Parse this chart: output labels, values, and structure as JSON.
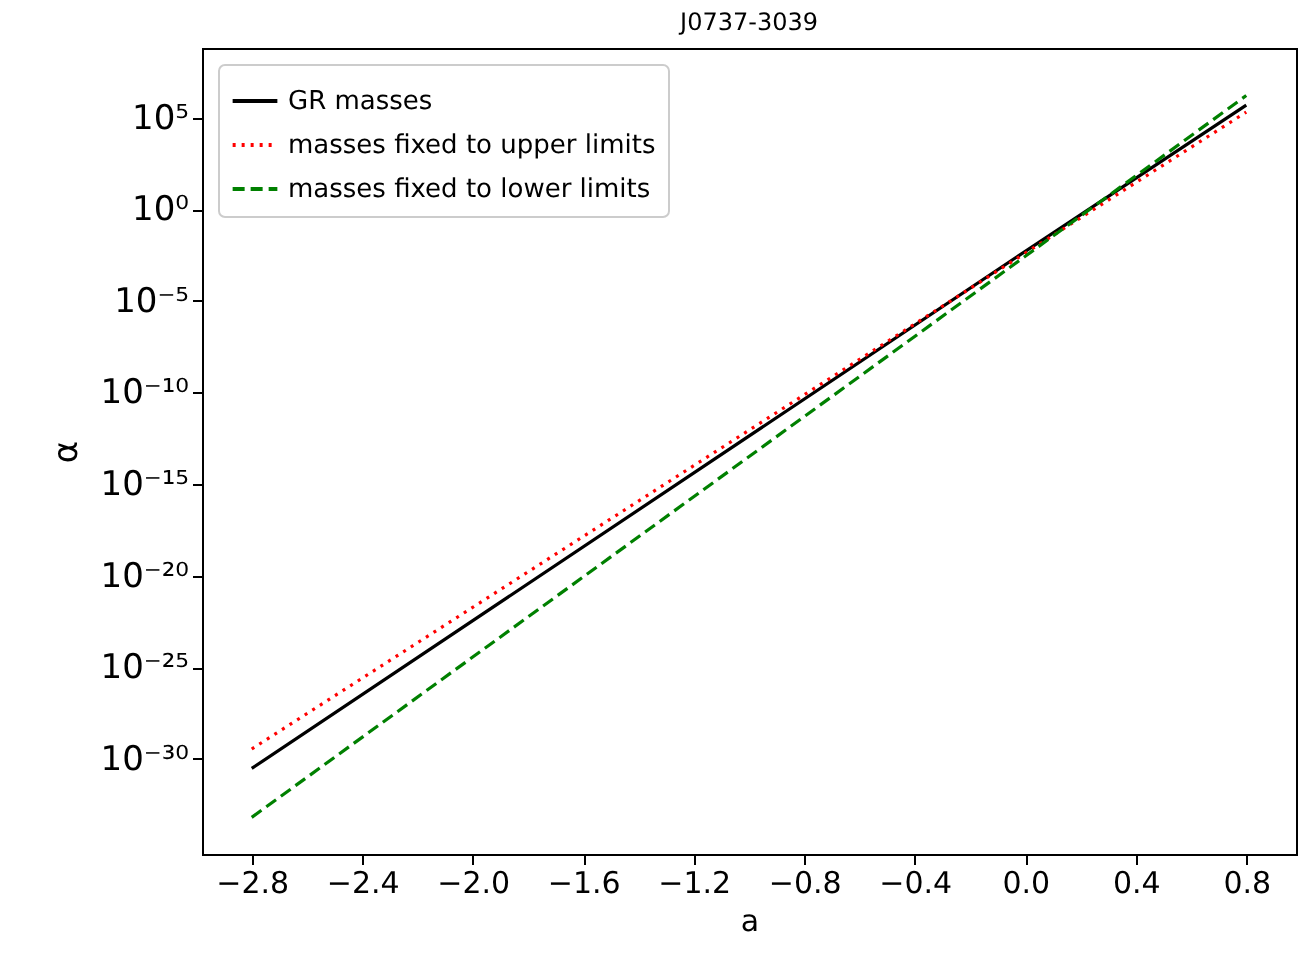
{
  "chart_data": {
    "type": "line",
    "title": "J0737-3039",
    "xlabel": "a",
    "ylabel": "α",
    "log": "y",
    "grid": false,
    "legend": "top left",
    "xlim": [
      -2.98,
      0.98
    ],
    "xticks": [
      -2.8,
      -2.4,
      {
        "value": -2.0,
        "label": "−2.0"
      },
      -1.6,
      -1.2,
      -0.8,
      -0.4,
      {
        "value": 0.0,
        "label": "0.0"
      },
      0.4,
      0.8
    ],
    "ylim": [
      6.3e-36,
      630000000.0
    ],
    "yticks": [
      {
        "value": 1e-30,
        "label": "10⁻³⁰"
      },
      {
        "value": 1e-25,
        "label": "10⁻²⁵"
      },
      {
        "value": 1e-20,
        "label": "10⁻²⁰"
      },
      {
        "value": 1e-15,
        "label": "10⁻¹⁵"
      },
      {
        "value": 1e-10,
        "label": "10⁻¹⁰"
      },
      {
        "value": 1e-05,
        "label": "10⁻⁵"
      },
      {
        "value": 1,
        "label": "10⁰"
      },
      {
        "value": 100000.0,
        "label": "10⁵"
      }
    ],
    "x": [
      -2.8,
      0.0,
      0.8
    ],
    "series": [
      {
        "name": "GR masses",
        "color": "#000000",
        "line_style": "solid",
        "values": [
          2.95e-31,
          0.005,
          480000.0
        ]
      },
      {
        "name": "masses fixed to upper limits",
        "color": "#ff0000",
        "line_style": "dotted",
        "values": [
          3.4e-30,
          0.004,
          200000.0
        ]
      },
      {
        "name": "masses fixed to lower limits",
        "color": "#008000",
        "line_style": "dashed",
        "values": [
          6.3e-34,
          0.0027,
          1600000.0
        ]
      }
    ]
  }
}
